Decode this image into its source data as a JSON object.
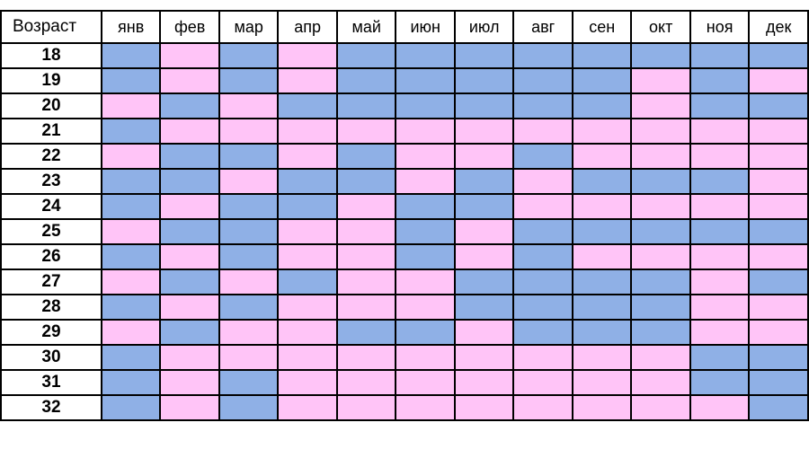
{
  "colors": {
    "blue": "#8fb0e6",
    "pink": "#ffc4f7",
    "border": "#000000"
  },
  "chart_data": {
    "type": "table",
    "row_header_label": "Возраст",
    "columns": [
      "янв",
      "фев",
      "мар",
      "апр",
      "май",
      "июн",
      "июл",
      "авг",
      "сен",
      "окт",
      "ноя",
      "дек"
    ],
    "rows": [
      {
        "age": "18",
        "cells": [
          "B",
          "P",
          "B",
          "P",
          "B",
          "B",
          "B",
          "B",
          "B",
          "B",
          "B",
          "B"
        ]
      },
      {
        "age": "19",
        "cells": [
          "B",
          "P",
          "B",
          "P",
          "B",
          "B",
          "B",
          "B",
          "B",
          "P",
          "B",
          "P"
        ]
      },
      {
        "age": "20",
        "cells": [
          "P",
          "B",
          "P",
          "B",
          "B",
          "B",
          "B",
          "B",
          "B",
          "P",
          "B",
          "B"
        ]
      },
      {
        "age": "21",
        "cells": [
          "B",
          "P",
          "P",
          "P",
          "P",
          "P",
          "P",
          "P",
          "P",
          "P",
          "P",
          "P"
        ]
      },
      {
        "age": "22",
        "cells": [
          "P",
          "B",
          "B",
          "P",
          "B",
          "P",
          "P",
          "B",
          "P",
          "P",
          "P",
          "P"
        ]
      },
      {
        "age": "23",
        "cells": [
          "B",
          "B",
          "P",
          "B",
          "B",
          "P",
          "B",
          "P",
          "B",
          "B",
          "B",
          "P"
        ]
      },
      {
        "age": "24",
        "cells": [
          "B",
          "P",
          "B",
          "B",
          "P",
          "B",
          "B",
          "P",
          "P",
          "P",
          "P",
          "P"
        ]
      },
      {
        "age": "25",
        "cells": [
          "P",
          "B",
          "B",
          "P",
          "P",
          "B",
          "P",
          "B",
          "B",
          "B",
          "B",
          "B"
        ]
      },
      {
        "age": "26",
        "cells": [
          "B",
          "P",
          "B",
          "P",
          "P",
          "B",
          "P",
          "B",
          "P",
          "P",
          "P",
          "P"
        ]
      },
      {
        "age": "27",
        "cells": [
          "P",
          "B",
          "P",
          "B",
          "P",
          "P",
          "B",
          "B",
          "B",
          "B",
          "P",
          "B"
        ]
      },
      {
        "age": "28",
        "cells": [
          "B",
          "P",
          "B",
          "P",
          "P",
          "P",
          "B",
          "B",
          "B",
          "B",
          "P",
          "P"
        ]
      },
      {
        "age": "29",
        "cells": [
          "P",
          "B",
          "P",
          "P",
          "B",
          "B",
          "P",
          "B",
          "B",
          "B",
          "P",
          "P"
        ]
      },
      {
        "age": "30",
        "cells": [
          "B",
          "P",
          "P",
          "P",
          "P",
          "P",
          "P",
          "P",
          "P",
          "P",
          "B",
          "B"
        ]
      },
      {
        "age": "31",
        "cells": [
          "B",
          "P",
          "B",
          "P",
          "P",
          "P",
          "P",
          "P",
          "P",
          "P",
          "B",
          "B"
        ]
      },
      {
        "age": "32",
        "cells": [
          "B",
          "P",
          "B",
          "P",
          "P",
          "P",
          "P",
          "P",
          "P",
          "P",
          "P",
          "B"
        ]
      }
    ]
  }
}
